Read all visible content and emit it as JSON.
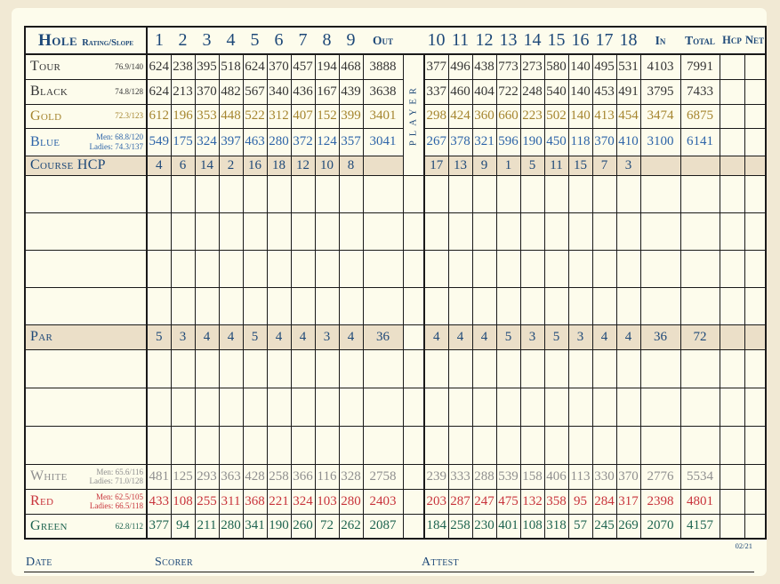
{
  "header": {
    "hole_label": "Hole",
    "rating_slope_label": "Rating/Slope",
    "front_holes": [
      "1",
      "2",
      "3",
      "4",
      "5",
      "6",
      "7",
      "8",
      "9"
    ],
    "out_label": "Out",
    "back_holes": [
      "10",
      "11",
      "12",
      "13",
      "14",
      "15",
      "16",
      "17",
      "18"
    ],
    "in_label": "In",
    "total_label": "Total",
    "hcp_label": "Hcp",
    "net_label": "Net"
  },
  "player_vertical_label": "PLAYER",
  "rows": [
    {
      "type": "tee",
      "key": "tour",
      "label": "Tour",
      "color_key": "tour",
      "rating_lines": [
        "76.9/140"
      ],
      "front": [
        624,
        238,
        395,
        518,
        624,
        370,
        457,
        194,
        468
      ],
      "out": 3888,
      "back": [
        377,
        496,
        438,
        773,
        273,
        580,
        140,
        495,
        531
      ],
      "in": 4103,
      "total": 7991
    },
    {
      "type": "tee",
      "key": "black",
      "label": "Black",
      "color_key": "black",
      "rating_lines": [
        "74.8/128"
      ],
      "front": [
        624,
        213,
        370,
        482,
        567,
        340,
        436,
        167,
        439
      ],
      "out": 3638,
      "back": [
        337,
        460,
        404,
        722,
        248,
        540,
        140,
        453,
        491
      ],
      "in": 3795,
      "total": 7433
    },
    {
      "type": "tee",
      "key": "gold",
      "label": "Gold",
      "color_key": "gold",
      "rating_lines": [
        "72.3/123"
      ],
      "front": [
        612,
        196,
        353,
        448,
        522,
        312,
        407,
        152,
        399
      ],
      "out": 3401,
      "back": [
        298,
        424,
        360,
        660,
        223,
        502,
        140,
        413,
        454
      ],
      "in": 3474,
      "total": 6875
    },
    {
      "type": "tee",
      "key": "blue",
      "label": "Blue",
      "color_key": "blue",
      "rating_lines": [
        "Men: 68.8/120",
        "Ladies: 74.3/137"
      ],
      "front": [
        549,
        175,
        324,
        397,
        463,
        280,
        372,
        124,
        357
      ],
      "out": 3041,
      "back": [
        267,
        378,
        321,
        596,
        190,
        450,
        118,
        370,
        410
      ],
      "in": 3100,
      "total": 6141
    },
    {
      "type": "hcp",
      "key": "course-hcp",
      "label": "Course HCP",
      "color_key": "navy",
      "front": [
        4,
        6,
        14,
        2,
        16,
        18,
        12,
        10,
        8
      ],
      "out": "",
      "back": [
        17,
        13,
        9,
        1,
        5,
        11,
        15,
        7,
        3
      ],
      "in": "",
      "total": ""
    },
    {
      "type": "blank",
      "key": "open-1"
    },
    {
      "type": "blank",
      "key": "open-2"
    },
    {
      "type": "blank",
      "key": "open-3"
    },
    {
      "type": "blank",
      "key": "open-4"
    },
    {
      "type": "par",
      "key": "par",
      "label": "Par",
      "color_key": "navy",
      "front": [
        5,
        3,
        4,
        4,
        5,
        4,
        4,
        3,
        4
      ],
      "out": 36,
      "back": [
        4,
        4,
        4,
        5,
        3,
        5,
        3,
        4,
        4
      ],
      "in": 36,
      "total": 72
    },
    {
      "type": "blank",
      "key": "open-5"
    },
    {
      "type": "blank",
      "key": "open-6"
    },
    {
      "type": "blank",
      "key": "open-7"
    },
    {
      "type": "tee",
      "key": "white",
      "label": "White",
      "color_key": "white",
      "rating_lines": [
        "Men: 65.6/116",
        "Ladies: 71.0/128"
      ],
      "front": [
        481,
        125,
        293,
        363,
        428,
        258,
        366,
        116,
        328
      ],
      "out": 2758,
      "back": [
        239,
        333,
        288,
        539,
        158,
        406,
        113,
        330,
        370
      ],
      "in": 2776,
      "total": 5534
    },
    {
      "type": "tee",
      "key": "red",
      "label": "Red",
      "color_key": "red",
      "rating_lines": [
        "Men: 62.5/105",
        "Ladies: 66.5/118"
      ],
      "front": [
        433,
        108,
        255,
        311,
        368,
        221,
        324,
        103,
        280
      ],
      "out": 2403,
      "back": [
        203,
        287,
        247,
        475,
        132,
        358,
        95,
        284,
        317
      ],
      "in": 2398,
      "total": 4801
    },
    {
      "type": "tee",
      "key": "green",
      "label": "Green",
      "color_key": "green",
      "rating_lines": [
        "62.8/112"
      ],
      "front": [
        377,
        94,
        211,
        280,
        341,
        190,
        260,
        72,
        262
      ],
      "out": 2087,
      "back": [
        184,
        258,
        230,
        401,
        108,
        318,
        57,
        245,
        269
      ],
      "in": 2070,
      "total": 4157
    }
  ],
  "footer": {
    "date_label": "Date",
    "scorer_label": "Scorer",
    "attest_label": "Attest",
    "revision": "02/21"
  },
  "colors": {
    "tour": "#343434",
    "black": "#343434",
    "gold": "#a5852f",
    "blue": "#2d64a8",
    "white": "#8f8f8f",
    "red": "#c8333b",
    "green": "#1e6450",
    "navy": "#1d4878",
    "shaded_row": "#ebdfc8",
    "card_bg": "#fdfcec",
    "page_bg": "#f1e9d4",
    "grid_line": "#1a1a1a"
  }
}
